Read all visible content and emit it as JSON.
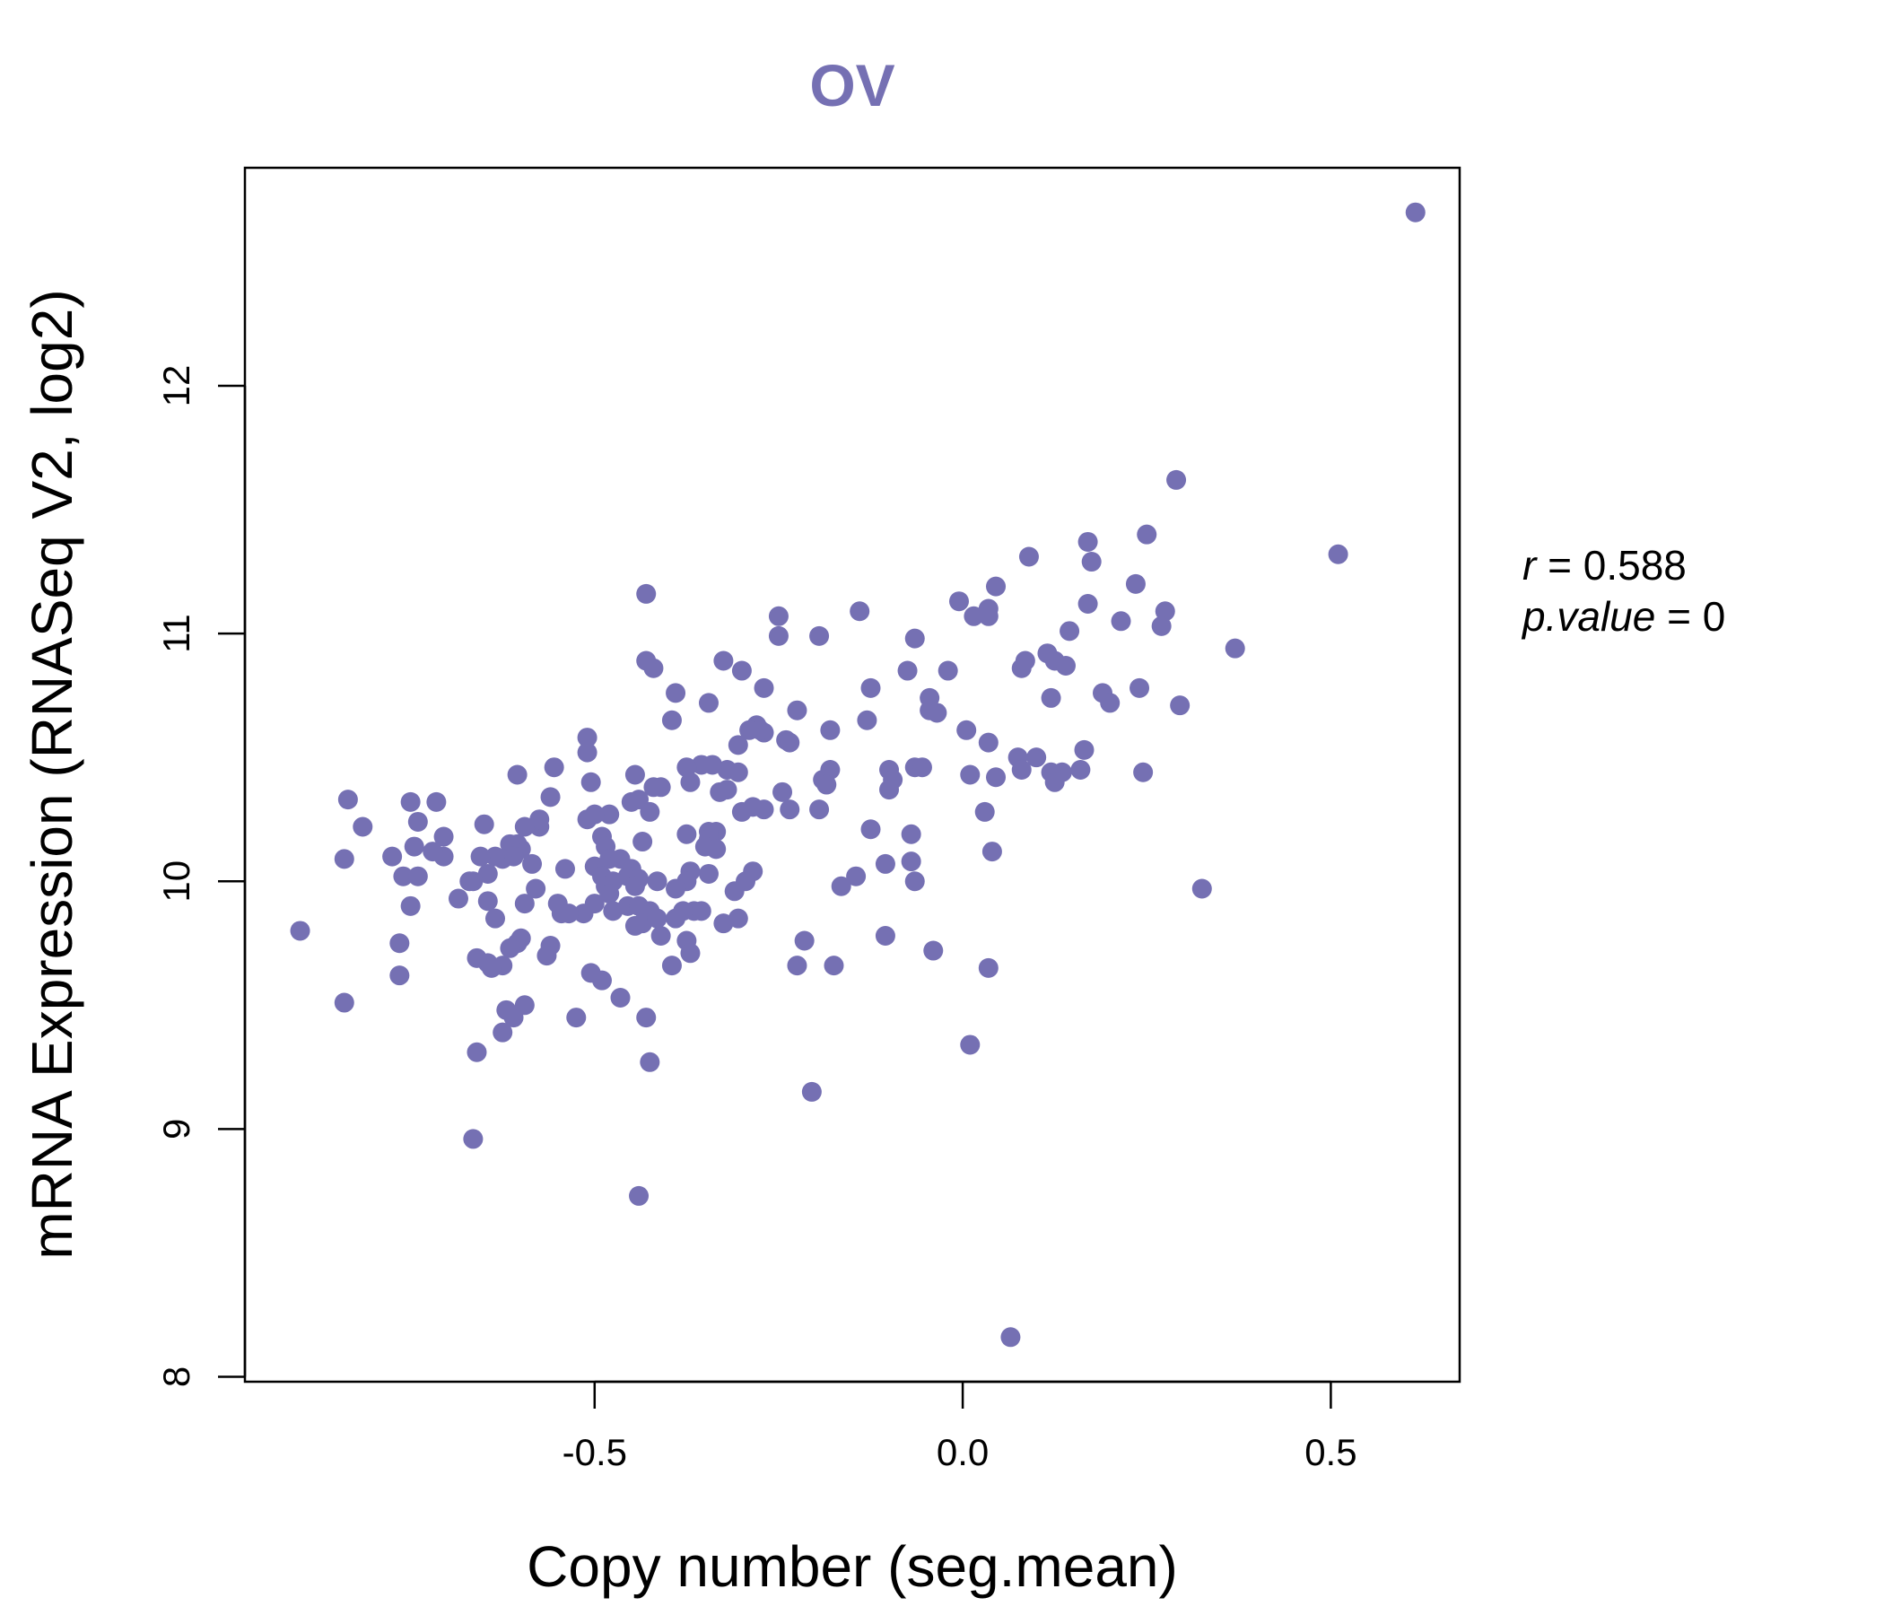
{
  "chart_data": {
    "type": "scatter",
    "title": "OV",
    "xlabel": "Copy number (seg.mean)",
    "ylabel": "mRNA Expression (RNASeq V2, log2)",
    "xlim": [
      -0.975,
      0.675
    ],
    "ylim": [
      7.98,
      12.88
    ],
    "xticks": [
      -0.5,
      0.0,
      0.5
    ],
    "xtick_labels": [
      "-0.5",
      "0.0",
      "0.5"
    ],
    "yticks": [
      8,
      9,
      10,
      11,
      12
    ],
    "ytick_labels": [
      "8",
      "9",
      "10",
      "11",
      "12"
    ],
    "grid": false,
    "point_color": "#7570b3",
    "stats": {
      "r_symbol": "r",
      "r_value": "0.588",
      "p_symbol": "p.value",
      "p_value": "0"
    },
    "points": [
      [
        0.615,
        12.7
      ],
      [
        0.51,
        11.32
      ],
      [
        0.29,
        11.62
      ],
      [
        0.37,
        10.94
      ],
      [
        0.25,
        11.4
      ],
      [
        0.275,
        11.09
      ],
      [
        0.235,
        11.2
      ],
      [
        0.27,
        11.03
      ],
      [
        0.215,
        11.05
      ],
      [
        0.17,
        11.37
      ],
      [
        0.175,
        11.29
      ],
      [
        0.17,
        11.12
      ],
      [
        0.24,
        10.78
      ],
      [
        0.295,
        10.71
      ],
      [
        0.19,
        10.76
      ],
      [
        0.2,
        10.72
      ],
      [
        0.325,
        9.97
      ],
      [
        0.245,
        10.44
      ],
      [
        0.09,
        11.31
      ],
      [
        0.045,
        11.19
      ],
      [
        0.145,
        11.01
      ],
      [
        0.035,
        11.1
      ],
      [
        0.015,
        11.07
      ],
      [
        0.035,
        11.07
      ],
      [
        -0.005,
        11.13
      ],
      [
        0.115,
        10.92
      ],
      [
        0.125,
        10.89
      ],
      [
        0.14,
        10.87
      ],
      [
        0.08,
        10.86
      ],
      [
        0.085,
        10.89
      ],
      [
        0.12,
        10.74
      ],
      [
        0.165,
        10.53
      ],
      [
        0.16,
        10.45
      ],
      [
        0.135,
        10.44
      ],
      [
        0.12,
        10.44
      ],
      [
        0.125,
        10.4
      ],
      [
        0.1,
        10.5
      ],
      [
        0.075,
        10.5
      ],
      [
        0.08,
        10.45
      ],
      [
        0.045,
        10.42
      ],
      [
        0.035,
        10.56
      ],
      [
        0.005,
        10.61
      ],
      [
        0.01,
        10.43
      ],
      [
        0.03,
        10.28
      ],
      [
        0.04,
        10.12
      ],
      [
        0.035,
        9.65
      ],
      [
        0.01,
        9.34
      ],
      [
        0.065,
        8.16
      ],
      [
        -0.02,
        10.85
      ],
      [
        -0.065,
        10.98
      ],
      [
        -0.075,
        10.85
      ],
      [
        -0.045,
        10.74
      ],
      [
        -0.045,
        10.69
      ],
      [
        -0.035,
        10.68
      ],
      [
        -0.065,
        10.46
      ],
      [
        -0.055,
        10.46
      ],
      [
        -0.1,
        10.45
      ],
      [
        -0.095,
        10.41
      ],
      [
        -0.1,
        10.37
      ],
      [
        -0.07,
        10.19
      ],
      [
        -0.07,
        10.08
      ],
      [
        -0.125,
        10.21
      ],
      [
        -0.105,
        10.07
      ],
      [
        -0.065,
        10.0
      ],
      [
        -0.145,
        10.02
      ],
      [
        -0.165,
        9.98
      ],
      [
        -0.04,
        9.72
      ],
      [
        -0.105,
        9.78
      ],
      [
        -0.175,
        9.66
      ],
      [
        -0.14,
        11.09
      ],
      [
        -0.13,
        10.65
      ],
      [
        -0.125,
        10.78
      ],
      [
        -0.18,
        10.61
      ],
      [
        -0.18,
        10.45
      ],
      [
        -0.19,
        10.41
      ],
      [
        -0.185,
        10.39
      ],
      [
        -0.195,
        10.29
      ],
      [
        -0.195,
        10.99
      ],
      [
        -0.225,
        10.69
      ],
      [
        -0.25,
        11.07
      ],
      [
        -0.25,
        10.99
      ],
      [
        -0.27,
        10.78
      ],
      [
        -0.28,
        10.63
      ],
      [
        -0.24,
        10.57
      ],
      [
        -0.235,
        10.56
      ],
      [
        -0.27,
        10.6
      ],
      [
        -0.275,
        10.61
      ],
      [
        -0.29,
        10.61
      ],
      [
        -0.245,
        10.36
      ],
      [
        -0.235,
        10.29
      ],
      [
        -0.27,
        10.29
      ],
      [
        -0.285,
        10.3
      ],
      [
        -0.285,
        10.04
      ],
      [
        -0.295,
        10.0
      ],
      [
        -0.215,
        9.76
      ],
      [
        -0.225,
        9.66
      ],
      [
        -0.205,
        9.15
      ],
      [
        -0.3,
        10.85
      ],
      [
        -0.305,
        10.55
      ],
      [
        -0.325,
        10.89
      ],
      [
        -0.345,
        10.72
      ],
      [
        -0.32,
        10.45
      ],
      [
        -0.305,
        10.44
      ],
      [
        -0.34,
        10.47
      ],
      [
        -0.355,
        10.47
      ],
      [
        -0.375,
        10.46
      ],
      [
        -0.37,
        10.4
      ],
      [
        -0.33,
        10.36
      ],
      [
        -0.32,
        10.37
      ],
      [
        -0.3,
        10.28
      ],
      [
        -0.335,
        10.2
      ],
      [
        -0.345,
        10.2
      ],
      [
        -0.345,
        10.17
      ],
      [
        -0.375,
        10.19
      ],
      [
        -0.35,
        10.14
      ],
      [
        -0.335,
        10.13
      ],
      [
        -0.345,
        10.03
      ],
      [
        -0.37,
        10.04
      ],
      [
        -0.375,
        10.0
      ],
      [
        -0.31,
        9.96
      ],
      [
        -0.355,
        9.88
      ],
      [
        -0.365,
        9.88
      ],
      [
        -0.38,
        9.88
      ],
      [
        -0.39,
        9.97
      ],
      [
        -0.305,
        9.85
      ],
      [
        -0.325,
        9.83
      ],
      [
        -0.375,
        9.76
      ],
      [
        -0.37,
        9.71
      ],
      [
        -0.39,
        10.76
      ],
      [
        -0.395,
        10.65
      ],
      [
        -0.42,
        10.86
      ],
      [
        -0.43,
        10.89
      ],
      [
        -0.43,
        11.16
      ],
      [
        -0.41,
        10.38
      ],
      [
        -0.42,
        10.38
      ],
      [
        -0.445,
        10.43
      ],
      [
        -0.45,
        10.32
      ],
      [
        -0.44,
        10.33
      ],
      [
        -0.425,
        10.28
      ],
      [
        -0.435,
        10.16
      ],
      [
        -0.45,
        10.05
      ],
      [
        -0.455,
        10.02
      ],
      [
        -0.44,
        10.01
      ],
      [
        -0.415,
        10.0
      ],
      [
        -0.445,
        9.98
      ],
      [
        -0.455,
        9.9
      ],
      [
        -0.44,
        9.9
      ],
      [
        -0.425,
        9.88
      ],
      [
        -0.43,
        9.86
      ],
      [
        -0.435,
        9.83
      ],
      [
        -0.445,
        9.82
      ],
      [
        -0.415,
        9.85
      ],
      [
        -0.39,
        9.85
      ],
      [
        -0.41,
        9.78
      ],
      [
        -0.395,
        9.66
      ],
      [
        -0.43,
        9.45
      ],
      [
        -0.425,
        9.27
      ],
      [
        -0.44,
        8.73
      ],
      [
        -0.465,
        9.53
      ],
      [
        -0.48,
        10.27
      ],
      [
        -0.49,
        10.18
      ],
      [
        -0.485,
        10.14
      ],
      [
        -0.48,
        10.09
      ],
      [
        -0.465,
        10.09
      ],
      [
        -0.5,
        10.06
      ],
      [
        -0.49,
        10.02
      ],
      [
        -0.475,
        10.0
      ],
      [
        -0.485,
        9.98
      ],
      [
        -0.48,
        9.95
      ],
      [
        -0.5,
        9.91
      ],
      [
        -0.475,
        9.88
      ],
      [
        -0.49,
        9.6
      ],
      [
        -0.505,
        9.63
      ],
      [
        -0.51,
        10.58
      ],
      [
        -0.51,
        10.52
      ],
      [
        -0.505,
        10.4
      ],
      [
        -0.51,
        10.25
      ],
      [
        -0.5,
        10.27
      ],
      [
        -0.54,
        10.05
      ],
      [
        -0.545,
        9.87
      ],
      [
        -0.515,
        9.87
      ],
      [
        -0.535,
        9.87
      ],
      [
        -0.525,
        9.45
      ],
      [
        -0.555,
        10.46
      ],
      [
        -0.56,
        10.34
      ],
      [
        -0.575,
        10.22
      ],
      [
        -0.575,
        10.25
      ],
      [
        -0.595,
        10.22
      ],
      [
        -0.585,
        10.07
      ],
      [
        -0.6,
        10.13
      ],
      [
        -0.605,
        10.15
      ],
      [
        -0.615,
        10.15
      ],
      [
        -0.61,
        10.1
      ],
      [
        -0.625,
        10.09
      ],
      [
        -0.605,
        10.43
      ],
      [
        -0.58,
        9.97
      ],
      [
        -0.595,
        9.91
      ],
      [
        -0.55,
        9.91
      ],
      [
        -0.56,
        9.74
      ],
      [
        -0.565,
        9.7
      ],
      [
        -0.6,
        9.77
      ],
      [
        -0.605,
        9.75
      ],
      [
        -0.615,
        9.73
      ],
      [
        -0.625,
        9.66
      ],
      [
        -0.645,
        9.67
      ],
      [
        -0.64,
        9.65
      ],
      [
        -0.66,
        9.69
      ],
      [
        -0.595,
        9.5
      ],
      [
        -0.61,
        9.45
      ],
      [
        -0.625,
        9.39
      ],
      [
        -0.62,
        9.48
      ],
      [
        -0.66,
        9.31
      ],
      [
        -0.665,
        8.96
      ],
      [
        -0.635,
        10.1
      ],
      [
        -0.645,
        10.03
      ],
      [
        -0.655,
        10.1
      ],
      [
        -0.65,
        10.23
      ],
      [
        -0.665,
        10.0
      ],
      [
        -0.67,
        10.0
      ],
      [
        -0.645,
        9.92
      ],
      [
        -0.685,
        9.93
      ],
      [
        -0.635,
        9.85
      ],
      [
        -0.715,
        10.32
      ],
      [
        -0.705,
        10.18
      ],
      [
        -0.705,
        10.1
      ],
      [
        -0.72,
        10.12
      ],
      [
        -0.75,
        10.32
      ],
      [
        -0.74,
        10.24
      ],
      [
        -0.745,
        10.14
      ],
      [
        -0.76,
        10.02
      ],
      [
        -0.74,
        10.02
      ],
      [
        -0.75,
        9.9
      ],
      [
        -0.775,
        10.1
      ],
      [
        -0.765,
        9.75
      ],
      [
        -0.765,
        9.62
      ],
      [
        -0.835,
        10.33
      ],
      [
        -0.815,
        10.22
      ],
      [
        -0.84,
        10.09
      ],
      [
        -0.84,
        9.51
      ],
      [
        -0.9,
        9.8
      ]
    ]
  }
}
